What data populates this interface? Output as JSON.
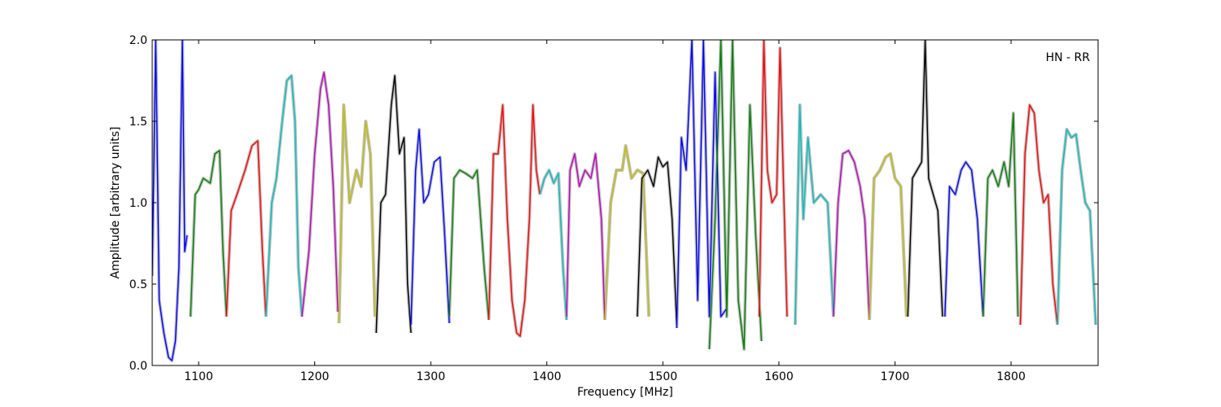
{
  "chart_data": {
    "type": "line",
    "title": "",
    "annotation": "HN - RR",
    "xlabel": "Frequency [MHz]",
    "ylabel": "Amplitude [arbitrary units]",
    "xlim": [
      1060,
      1875
    ],
    "ylim": [
      0,
      2.0
    ],
    "grid": false,
    "legend": "none",
    "xticks": [
      {
        "value": 1100,
        "label": "1100"
      },
      {
        "value": 1200,
        "label": "1200"
      },
      {
        "value": 1300,
        "label": "1300"
      },
      {
        "value": 1400,
        "label": "1400"
      },
      {
        "value": 1500,
        "label": "1500"
      },
      {
        "value": 1600,
        "label": "1600"
      },
      {
        "value": 1700,
        "label": "1700"
      },
      {
        "value": 1800,
        "label": "1800"
      }
    ],
    "yticks": [
      {
        "value": 0.0,
        "label": "0.0"
      },
      {
        "value": 0.5,
        "label": "0.5"
      },
      {
        "value": 1.0,
        "label": "1.0"
      },
      {
        "value": 1.5,
        "label": "1.5"
      },
      {
        "value": 2.0,
        "label": "2.0"
      }
    ],
    "background_color": "#c0c0c0",
    "series": [
      {
        "color": "#0000ff",
        "x": [
          1060,
          1063,
          1066,
          1070,
          1074,
          1077,
          1080,
          1083,
          1086,
          1088,
          1090
        ],
        "y": [
          0.55,
          2.0,
          0.4,
          0.2,
          0.05,
          0.03,
          0.15,
          0.6,
          2.0,
          0.7,
          0.8
        ]
      },
      {
        "color": "#008000",
        "x": [
          1093,
          1097,
          1100,
          1104,
          1110,
          1114,
          1118,
          1121,
          1124
        ],
        "y": [
          0.3,
          1.05,
          1.08,
          1.15,
          1.12,
          1.3,
          1.32,
          0.7,
          0.3
        ]
      },
      {
        "color": "#ff0000",
        "x": [
          1124,
          1128,
          1133,
          1140,
          1146,
          1151,
          1155,
          1158
        ],
        "y": [
          0.3,
          0.95,
          1.05,
          1.2,
          1.35,
          1.38,
          0.7,
          0.3
        ]
      },
      {
        "color": "#00bfbf",
        "x": [
          1158,
          1163,
          1167,
          1172,
          1176,
          1180,
          1183,
          1186,
          1189
        ],
        "y": [
          0.3,
          1.0,
          1.15,
          1.5,
          1.75,
          1.78,
          1.5,
          0.6,
          0.3
        ]
      },
      {
        "color": "#bf00bf",
        "x": [
          1189,
          1195,
          1200,
          1205,
          1208,
          1212,
          1216,
          1220
        ],
        "y": [
          0.3,
          0.7,
          1.3,
          1.7,
          1.8,
          1.6,
          1.1,
          0.33
        ]
      },
      {
        "color": "#bfbf00",
        "x": [
          1221,
          1225,
          1230,
          1236,
          1240,
          1244,
          1248,
          1252
        ],
        "y": [
          0.26,
          1.6,
          1.0,
          1.2,
          1.1,
          1.5,
          1.3,
          0.3
        ]
      },
      {
        "color": "#000000",
        "x": [
          1253,
          1257,
          1261,
          1266,
          1269,
          1273,
          1277,
          1280,
          1283
        ],
        "y": [
          0.2,
          1.0,
          1.05,
          1.6,
          1.78,
          1.3,
          1.4,
          0.5,
          0.2
        ]
      },
      {
        "color": "#0000ff",
        "x": [
          1283,
          1287,
          1290,
          1294,
          1298,
          1303,
          1308,
          1312,
          1316
        ],
        "y": [
          0.25,
          1.2,
          1.45,
          1.0,
          1.05,
          1.25,
          1.28,
          0.8,
          0.26
        ]
      },
      {
        "color": "#008000",
        "x": [
          1316,
          1320,
          1325,
          1330,
          1336,
          1340,
          1346,
          1350
        ],
        "y": [
          0.3,
          1.15,
          1.2,
          1.18,
          1.15,
          1.2,
          0.6,
          0.28
        ]
      },
      {
        "color": "#ff0000",
        "x": [
          1350,
          1354,
          1358,
          1362,
          1366,
          1370,
          1374,
          1377,
          1381,
          1385,
          1388,
          1391,
          1394
        ],
        "y": [
          0.28,
          1.3,
          1.3,
          1.6,
          0.9,
          0.4,
          0.2,
          0.18,
          0.4,
          0.9,
          1.6,
          1.2,
          1.05
        ]
      },
      {
        "color": "#00bfbf",
        "x": [
          1394,
          1398,
          1402,
          1406,
          1410,
          1414,
          1417
        ],
        "y": [
          1.05,
          1.15,
          1.2,
          1.12,
          1.18,
          0.6,
          0.28
        ]
      },
      {
        "color": "#bf00bf",
        "x": [
          1417,
          1420,
          1424,
          1428,
          1433,
          1438,
          1442,
          1447,
          1450
        ],
        "y": [
          0.3,
          1.2,
          1.3,
          1.1,
          1.2,
          1.15,
          1.3,
          0.9,
          0.28
        ]
      },
      {
        "color": "#bfbf00",
        "x": [
          1450,
          1455,
          1460,
          1465,
          1468,
          1473,
          1478,
          1483,
          1488
        ],
        "y": [
          0.28,
          1.0,
          1.2,
          1.2,
          1.35,
          1.15,
          1.2,
          1.18,
          0.3
        ]
      },
      {
        "color": "#000000",
        "x": [
          1478,
          1482,
          1487,
          1492,
          1496,
          1500,
          1504,
          1508,
          1512
        ],
        "y": [
          0.3,
          1.15,
          1.2,
          1.1,
          1.28,
          1.22,
          1.25,
          0.9,
          0.25
        ]
      },
      {
        "color": "#0000ff",
        "x": [
          1512,
          1516,
          1520,
          1525,
          1530,
          1535,
          1540,
          1545,
          1550,
          1555
        ],
        "y": [
          0.23,
          1.4,
          1.2,
          2.0,
          0.4,
          2.0,
          0.3,
          1.8,
          0.3,
          0.35
        ]
      },
      {
        "color": "#008000",
        "x": [
          1540,
          1545,
          1550,
          1555,
          1560,
          1565,
          1570,
          1575,
          1580,
          1585
        ],
        "y": [
          0.1,
          0.9,
          2.0,
          0.3,
          2.0,
          0.4,
          0.1,
          1.6,
          0.8,
          0.15
        ]
      },
      {
        "color": "#ff0000",
        "x": [
          1583,
          1587,
          1590,
          1594,
          1598,
          1601,
          1604,
          1607
        ],
        "y": [
          0.3,
          2.0,
          1.2,
          1.0,
          1.05,
          1.95,
          1.1,
          0.3
        ]
      },
      {
        "color": "#00bfbf",
        "x": [
          1614,
          1618,
          1621,
          1625,
          1630,
          1636,
          1642,
          1647
        ],
        "y": [
          0.25,
          1.6,
          0.9,
          1.4,
          1.0,
          1.05,
          1.0,
          0.3
        ]
      },
      {
        "color": "#bf00bf",
        "x": [
          1647,
          1651,
          1655,
          1660,
          1665,
          1670,
          1674,
          1678
        ],
        "y": [
          0.3,
          1.0,
          1.3,
          1.32,
          1.25,
          1.1,
          0.9,
          0.28
        ]
      },
      {
        "color": "#bfbf00",
        "x": [
          1678,
          1682,
          1687,
          1692,
          1696,
          1700,
          1705,
          1710
        ],
        "y": [
          0.28,
          1.15,
          1.2,
          1.28,
          1.3,
          1.15,
          1.1,
          0.3
        ]
      },
      {
        "color": "#000000",
        "x": [
          1711,
          1715,
          1719,
          1723,
          1726,
          1729,
          1733,
          1737,
          1741
        ],
        "y": [
          0.3,
          1.15,
          1.2,
          1.25,
          2.0,
          1.15,
          1.05,
          0.95,
          0.3
        ]
      },
      {
        "color": "#0000ff",
        "x": [
          1743,
          1747,
          1752,
          1757,
          1761,
          1766,
          1771,
          1776
        ],
        "y": [
          0.3,
          1.1,
          1.05,
          1.2,
          1.25,
          1.2,
          0.9,
          0.3
        ]
      },
      {
        "color": "#008000",
        "x": [
          1776,
          1780,
          1784,
          1789,
          1794,
          1798,
          1802,
          1806
        ],
        "y": [
          0.3,
          1.15,
          1.2,
          1.1,
          1.25,
          1.1,
          1.55,
          0.3
        ]
      },
      {
        "color": "#ff0000",
        "x": [
          1808,
          1812,
          1816,
          1820,
          1824,
          1828,
          1832,
          1836,
          1840
        ],
        "y": [
          0.25,
          1.3,
          1.6,
          1.55,
          1.2,
          1.0,
          1.05,
          0.5,
          0.25
        ]
      },
      {
        "color": "#00bfbf",
        "x": [
          1840,
          1844,
          1848,
          1852,
          1856,
          1860,
          1864,
          1868,
          1873
        ],
        "y": [
          0.25,
          1.2,
          1.45,
          1.4,
          1.42,
          1.2,
          1.0,
          0.95,
          0.25
        ]
      }
    ]
  }
}
